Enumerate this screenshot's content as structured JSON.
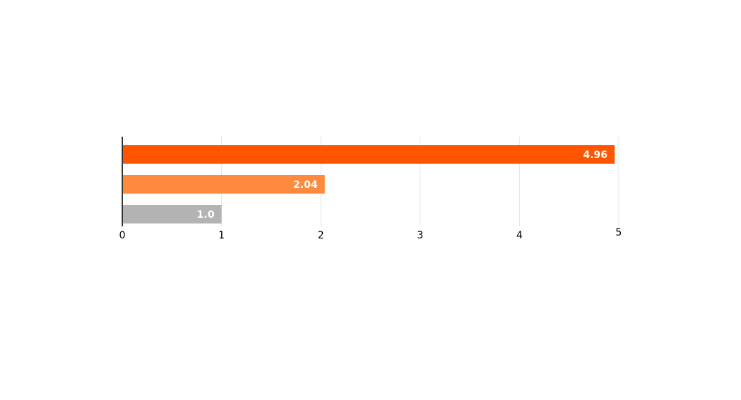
{
  "chart_data": {
    "type": "bar",
    "orientation": "horizontal",
    "categories": [
      null,
      null,
      null
    ],
    "values": [
      4.96,
      2.04,
      1.0
    ],
    "value_labels": [
      "4.96",
      "2.04",
      "1.0"
    ],
    "colors": [
      "#ff5500",
      "#ff8a3d",
      "#b3b3b3"
    ],
    "xlim": [
      0,
      5
    ],
    "xticks": [
      0,
      1,
      2,
      3,
      4,
      5
    ],
    "grid": true
  }
}
